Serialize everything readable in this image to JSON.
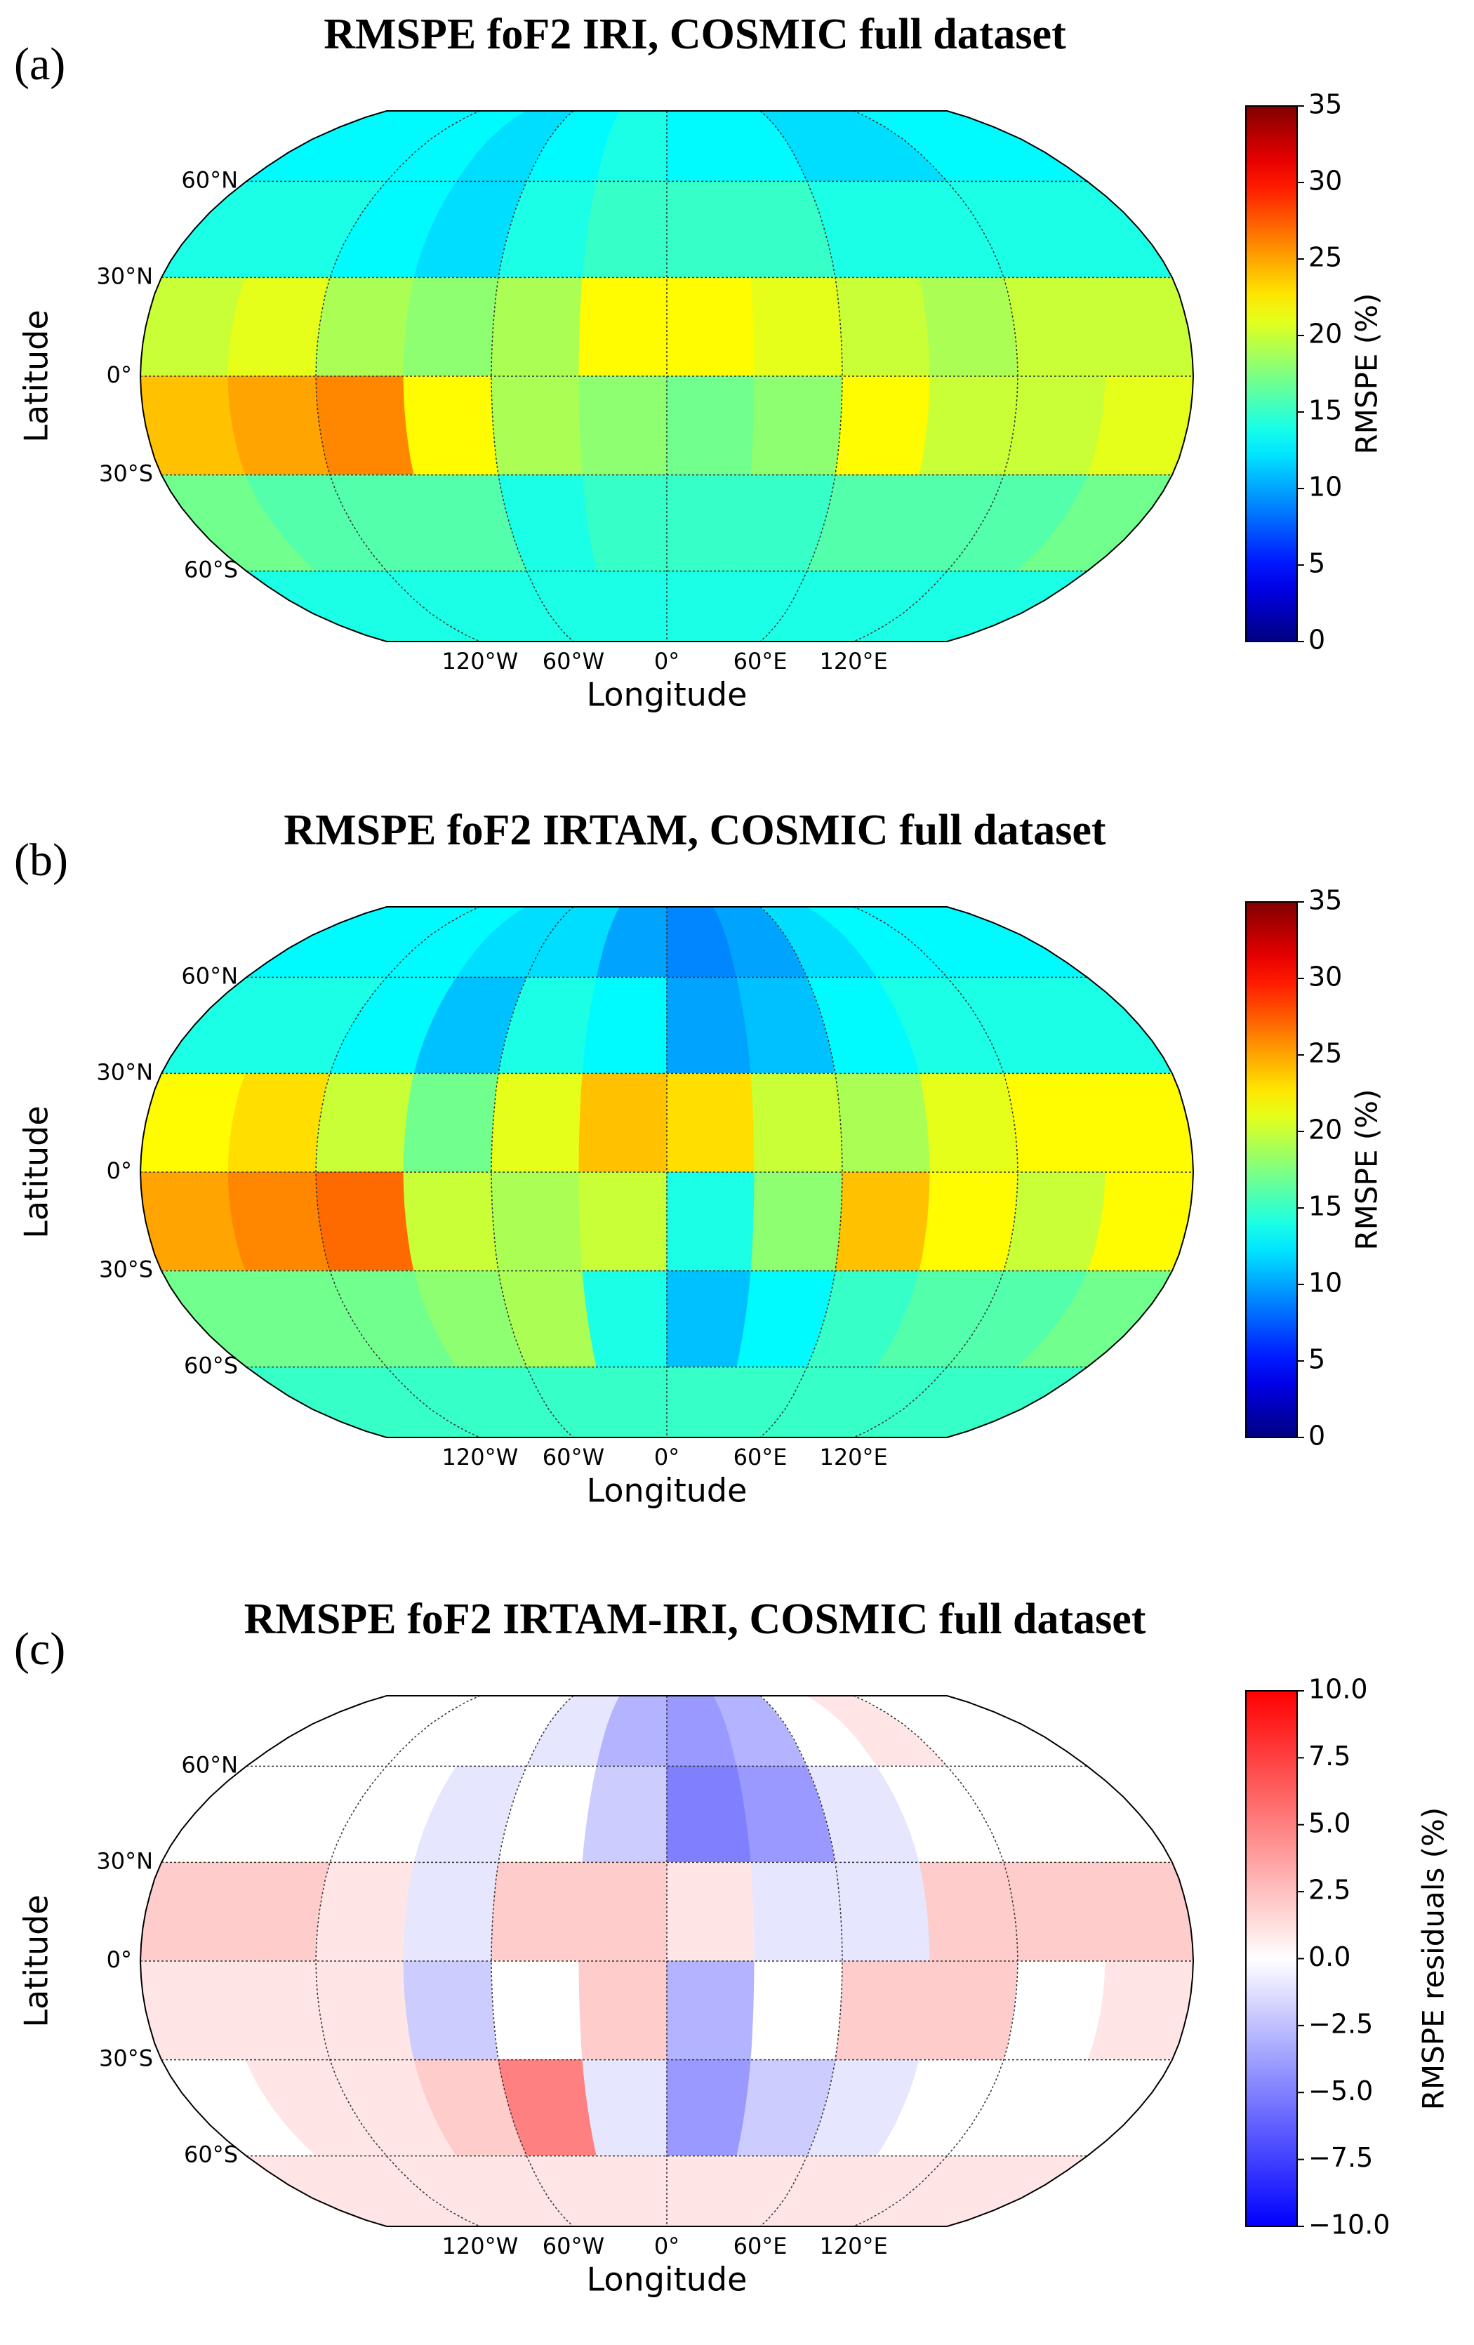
{
  "chart_data": [
    {
      "type": "heatmap",
      "panel_label": "(a)",
      "title": "RMSPE foF2 IRI, COSMIC full dataset",
      "x_label": "Longitude",
      "y_label": "Latitude",
      "colorbar_label": "RMSPE (%)",
      "colormap": "jet",
      "xlim": [
        -180,
        180
      ],
      "ylim": [
        -90,
        90
      ],
      "xticks": [
        {
          "value": -120,
          "label": "120°W"
        },
        {
          "value": -60,
          "label": "60°W"
        },
        {
          "value": 0,
          "label": "0°"
        },
        {
          "value": 60,
          "label": "60°E"
        },
        {
          "value": 120,
          "label": "120°E"
        }
      ],
      "yticks": [
        {
          "value": 60,
          "label": "60°N"
        },
        {
          "value": 30,
          "label": "30°N"
        },
        {
          "value": 0,
          "label": "0°"
        },
        {
          "value": -30,
          "label": "30°S"
        },
        {
          "value": -60,
          "label": "60°S"
        }
      ],
      "clim": [
        0,
        35
      ],
      "cticks": [
        0,
        5,
        10,
        15,
        20,
        25,
        30,
        35
      ],
      "x_bins": [
        -180,
        -150,
        -120,
        -90,
        -60,
        -30,
        0,
        30,
        60,
        90,
        120,
        150,
        180
      ],
      "y_bins": [
        90,
        60,
        30,
        0,
        -30,
        -60,
        -90
      ],
      "values": [
        [
          13,
          13,
          13,
          12,
          13,
          14,
          13,
          13,
          12,
          12,
          13,
          13
        ],
        [
          14,
          14,
          13,
          12,
          14,
          15,
          15,
          15,
          14,
          14,
          14,
          14
        ],
        [
          20,
          21,
          19,
          18,
          19,
          22,
          22,
          21,
          20,
          19,
          20,
          20
        ],
        [
          24,
          25,
          26,
          22,
          19,
          18,
          17,
          18,
          22,
          20,
          20,
          21
        ],
        [
          17,
          16,
          16,
          16,
          14,
          15,
          15,
          15,
          16,
          16,
          16,
          17
        ],
        [
          14,
          14,
          14,
          14,
          14,
          14,
          14,
          14,
          14,
          14,
          14,
          14
        ]
      ]
    },
    {
      "type": "heatmap",
      "panel_label": "(b)",
      "title": "RMSPE foF2 IRTAM, COSMIC full dataset",
      "x_label": "Longitude",
      "y_label": "Latitude",
      "colorbar_label": "RMSPE (%)",
      "colormap": "jet",
      "xlim": [
        -180,
        180
      ],
      "ylim": [
        -90,
        90
      ],
      "xticks": [
        {
          "value": -120,
          "label": "120°W"
        },
        {
          "value": -60,
          "label": "60°W"
        },
        {
          "value": 0,
          "label": "0°"
        },
        {
          "value": 60,
          "label": "60°E"
        },
        {
          "value": 120,
          "label": "120°E"
        }
      ],
      "yticks": [
        {
          "value": 60,
          "label": "60°N"
        },
        {
          "value": 30,
          "label": "30°N"
        },
        {
          "value": 0,
          "label": "0°"
        },
        {
          "value": -30,
          "label": "30°S"
        },
        {
          "value": -60,
          "label": "60°S"
        }
      ],
      "clim": [
        0,
        35
      ],
      "cticks": [
        0,
        5,
        10,
        15,
        20,
        25,
        30,
        35
      ],
      "x_bins": [
        -180,
        -150,
        -120,
        -90,
        -60,
        -30,
        0,
        30,
        60,
        90,
        120,
        150,
        180
      ],
      "y_bins": [
        90,
        60,
        30,
        0,
        -30,
        -60,
        -90
      ],
      "values": [
        [
          13,
          13,
          13,
          12,
          12,
          10,
          9,
          10,
          12,
          13,
          13,
          13
        ],
        [
          14,
          14,
          13,
          11,
          14,
          13,
          10,
          11,
          13,
          14,
          14,
          14
        ],
        [
          22,
          23,
          20,
          17,
          21,
          24,
          23,
          20,
          19,
          21,
          22,
          22
        ],
        [
          25,
          26,
          27,
          20,
          19,
          20,
          14,
          18,
          24,
          22,
          20,
          22
        ],
        [
          17,
          17,
          17,
          18,
          19,
          14,
          11,
          13,
          15,
          16,
          16,
          17
        ],
        [
          15,
          15,
          15,
          15,
          15,
          15,
          15,
          15,
          15,
          15,
          15,
          15
        ]
      ]
    },
    {
      "type": "heatmap",
      "panel_label": "(c)",
      "title": "RMSPE foF2 IRTAM-IRI, COSMIC full dataset",
      "x_label": "Longitude",
      "y_label": "Latitude",
      "colorbar_label": "RMSPE residuals (%)",
      "colormap": "bwr",
      "xlim": [
        -180,
        180
      ],
      "ylim": [
        -90,
        90
      ],
      "xticks": [
        {
          "value": -120,
          "label": "120°W"
        },
        {
          "value": -60,
          "label": "60°W"
        },
        {
          "value": 0,
          "label": "0°"
        },
        {
          "value": 60,
          "label": "60°E"
        },
        {
          "value": 120,
          "label": "120°E"
        }
      ],
      "yticks": [
        {
          "value": 60,
          "label": "60°N"
        },
        {
          "value": 30,
          "label": "30°N"
        },
        {
          "value": 0,
          "label": "0°"
        },
        {
          "value": -30,
          "label": "30°S"
        },
        {
          "value": -60,
          "label": "60°S"
        }
      ],
      "clim": [
        -10,
        10
      ],
      "cticks": [
        {
          "value": -10,
          "label": "−10.0"
        },
        {
          "value": -7.5,
          "label": "−7.5"
        },
        {
          "value": -5,
          "label": "−5.0"
        },
        {
          "value": -2.5,
          "label": "−2.5"
        },
        {
          "value": 0,
          "label": "0.0"
        },
        {
          "value": 2.5,
          "label": "2.5"
        },
        {
          "value": 5,
          "label": "5.0"
        },
        {
          "value": 7.5,
          "label": "7.5"
        },
        {
          "value": 10,
          "label": "10.0"
        }
      ],
      "x_bins": [
        -180,
        -150,
        -120,
        -90,
        -60,
        -30,
        0,
        30,
        60,
        90,
        120,
        150,
        180
      ],
      "y_bins": [
        90,
        60,
        30,
        0,
        -30,
        -60,
        -90
      ],
      "values": [
        [
          0,
          0,
          0,
          0,
          -1,
          -3,
          -4,
          -3,
          0,
          1,
          0,
          0
        ],
        [
          0,
          0,
          0,
          -1,
          0,
          -2,
          -5,
          -4,
          -1,
          0,
          0,
          0
        ],
        [
          2,
          2,
          1,
          -1,
          2,
          2,
          1,
          -1,
          -1,
          2,
          2,
          2
        ],
        [
          1,
          1,
          1,
          -2,
          0,
          2,
          -3,
          0,
          2,
          2,
          0,
          1
        ],
        [
          0,
          1,
          1,
          2,
          5,
          -1,
          -4,
          -2,
          -1,
          0,
          0,
          0
        ],
        [
          1,
          1,
          1,
          1,
          1,
          1,
          1,
          1,
          1,
          1,
          1,
          1
        ]
      ]
    }
  ]
}
